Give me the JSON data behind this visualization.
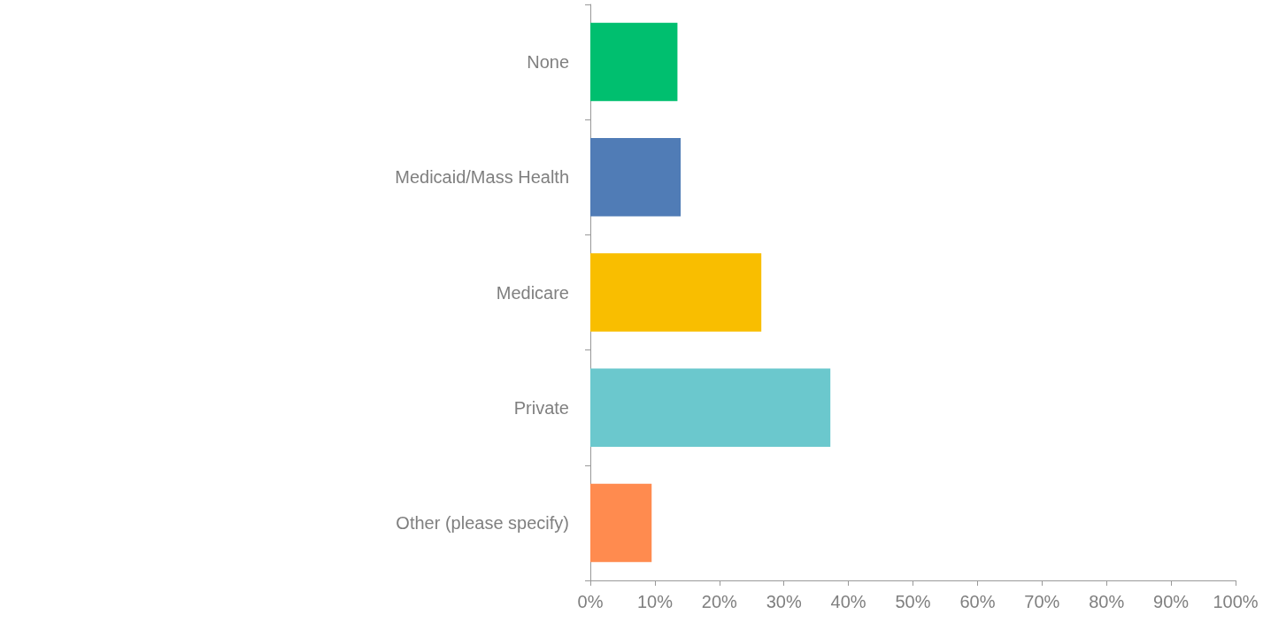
{
  "chart_data": {
    "type": "bar",
    "orientation": "horizontal",
    "categories": [
      "None",
      "Medicaid/Mass Health",
      "Medicare",
      "Private",
      "Other (please specify)"
    ],
    "values": [
      13.5,
      14.0,
      26.5,
      37.2,
      9.5
    ],
    "colors": [
      "#00bf6f",
      "#507cb6",
      "#f9be00",
      "#6bc8cd",
      "#ff8b4f"
    ],
    "xlim": [
      0,
      100
    ],
    "xticks": [
      {
        "value": 0,
        "label": "0%"
      },
      {
        "value": 10,
        "label": "10%"
      },
      {
        "value": 20,
        "label": "20%"
      },
      {
        "value": 30,
        "label": "30%"
      },
      {
        "value": 40,
        "label": "40%"
      },
      {
        "value": 50,
        "label": "50%"
      },
      {
        "value": 60,
        "label": "60%"
      },
      {
        "value": 70,
        "label": "70%"
      },
      {
        "value": 80,
        "label": "80%"
      },
      {
        "value": 90,
        "label": "90%"
      },
      {
        "value": 100,
        "label": "100%"
      }
    ],
    "grid": false
  }
}
